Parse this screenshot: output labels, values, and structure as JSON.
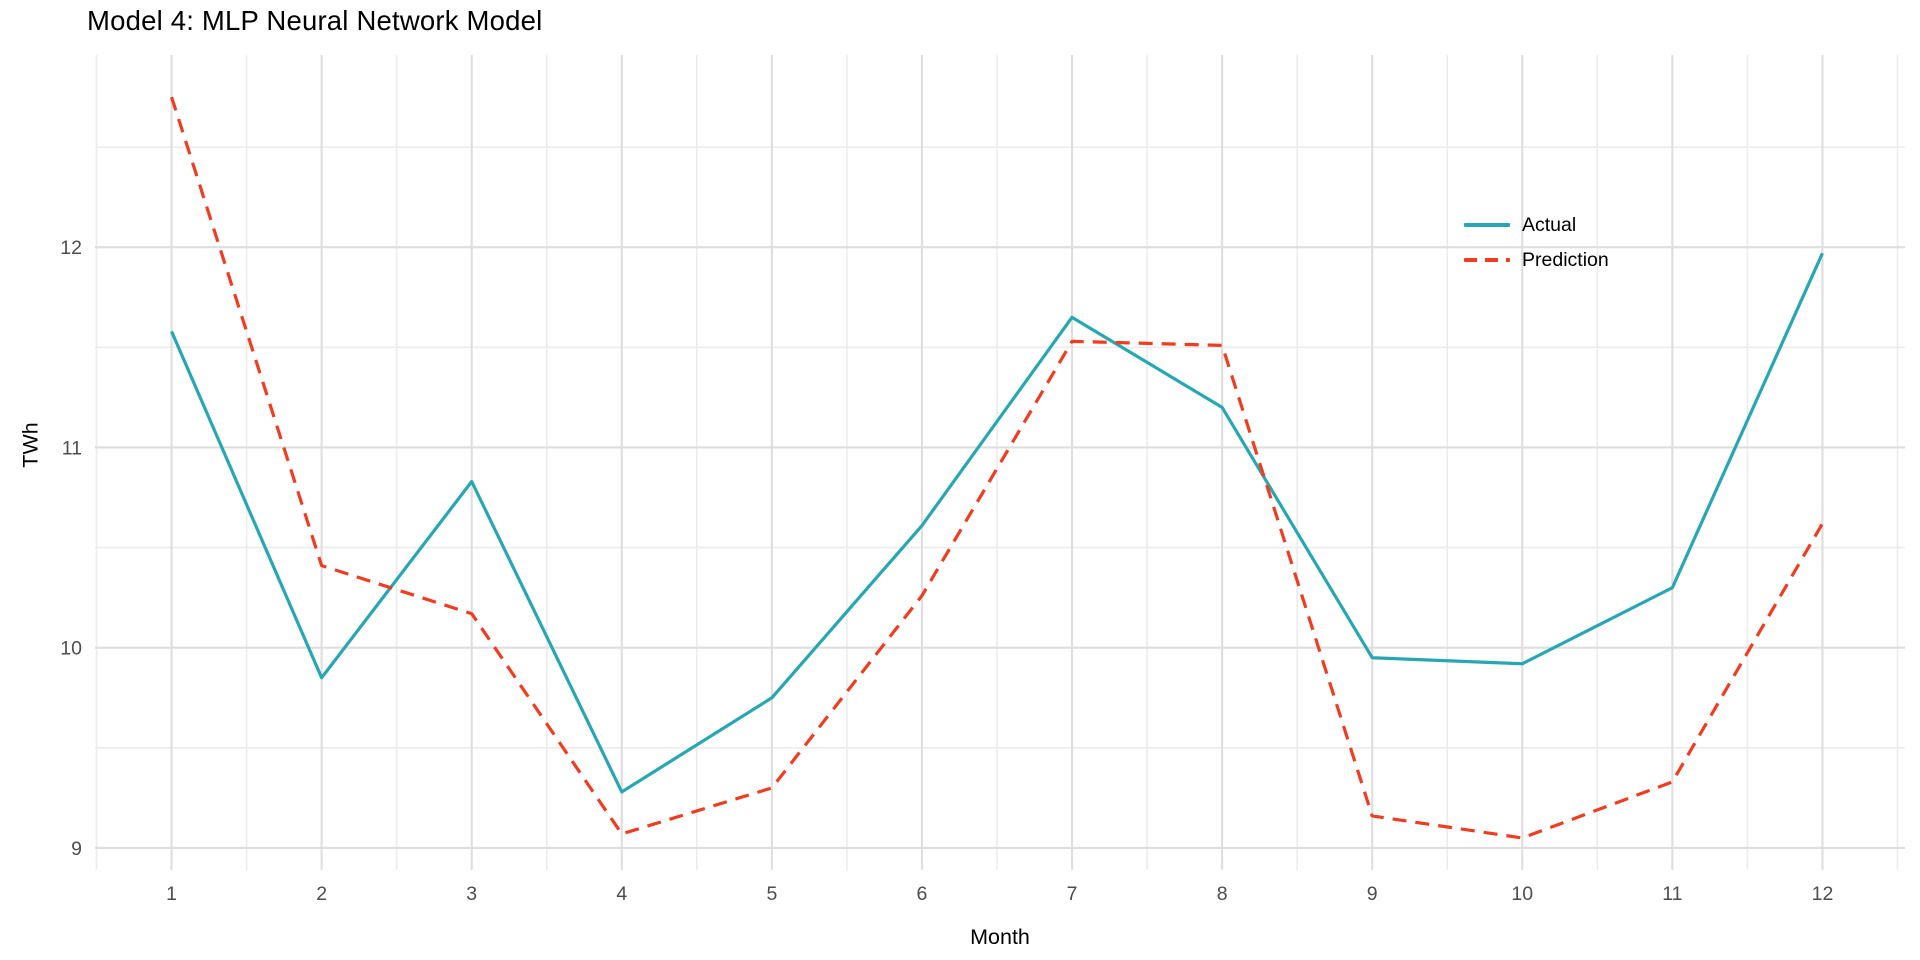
{
  "title": "Model 4: MLP Neural Network Model",
  "axes": {
    "x_label": "Month",
    "y_label": "TWh"
  },
  "legend_position": "inside-right",
  "chart_data": {
    "type": "line",
    "title": "Model 4: MLP Neural Network Model",
    "xlabel": "Month",
    "ylabel": "TWh",
    "x": [
      1,
      2,
      3,
      4,
      5,
      6,
      7,
      8,
      9,
      10,
      11,
      12
    ],
    "series": [
      {
        "name": "Actual",
        "style": "solid",
        "color": "#27A6B4",
        "values": [
          11.58,
          9.85,
          10.83,
          9.28,
          9.75,
          10.61,
          11.65,
          11.2,
          9.95,
          9.92,
          10.3,
          11.97
        ]
      },
      {
        "name": "Prediction",
        "style": "dashed",
        "color": "#F03C20",
        "values": [
          12.75,
          10.41,
          10.17,
          9.07,
          9.3,
          10.26,
          11.53,
          11.51,
          9.16,
          9.05,
          9.33,
          10.62
        ]
      }
    ],
    "x_ticks": [
      1,
      2,
      3,
      4,
      5,
      6,
      7,
      8,
      9,
      10,
      11,
      12
    ],
    "y_ticks": [
      9,
      10,
      11,
      12
    ],
    "x_minor_step": 0.5,
    "y_minor_step": 0.5,
    "xlim": [
      0.49,
      12.55
    ],
    "ylim": [
      8.89,
      12.96
    ],
    "grid": "major+minor",
    "legend_position": "inside-right",
    "colors": {
      "grid_major": "#DEDEDE",
      "grid_minor": "#ECECEC",
      "tick_label": "#4D4D4D",
      "text": "#000000"
    }
  }
}
